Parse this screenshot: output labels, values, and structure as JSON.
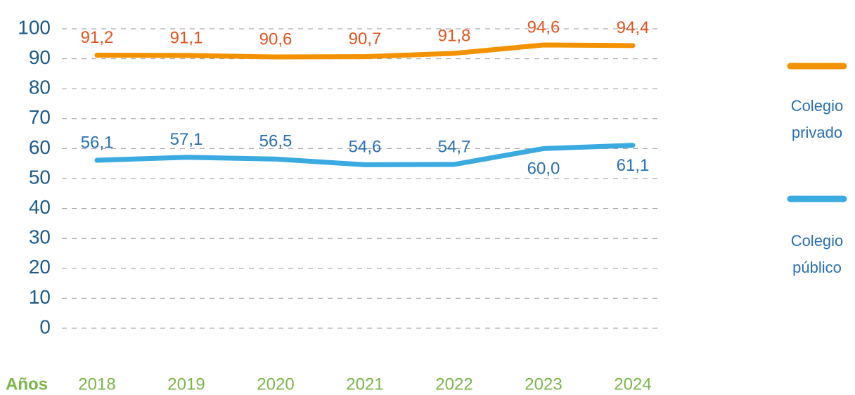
{
  "chart_data": {
    "type": "line",
    "x_label": "Años",
    "categories": [
      "2018",
      "2019",
      "2020",
      "2021",
      "2022",
      "2023",
      "2024"
    ],
    "series": [
      {
        "name": "Colegio privado",
        "color": "#f39200",
        "label_color": "#e2541f",
        "values": [
          91.2,
          91.1,
          90.6,
          90.7,
          91.8,
          94.6,
          94.4
        ],
        "value_labels": [
          "91,2",
          "91,1",
          "90,6",
          "90,7",
          "91,8",
          "94,6",
          "94,4"
        ]
      },
      {
        "name": "Colegio público",
        "color": "#3aaae1",
        "label_color": "#2a6fb0",
        "values": [
          56.1,
          57.1,
          56.5,
          54.6,
          54.7,
          60.0,
          61.1
        ],
        "value_labels": [
          "56,1",
          "57,1",
          "56,5",
          "54,6",
          "54,7",
          "60,0",
          "61,1"
        ]
      }
    ],
    "ylim": [
      0,
      100
    ],
    "yticks": [
      0,
      10,
      20,
      30,
      40,
      50,
      60,
      70,
      80,
      90,
      100
    ],
    "grid": true
  }
}
